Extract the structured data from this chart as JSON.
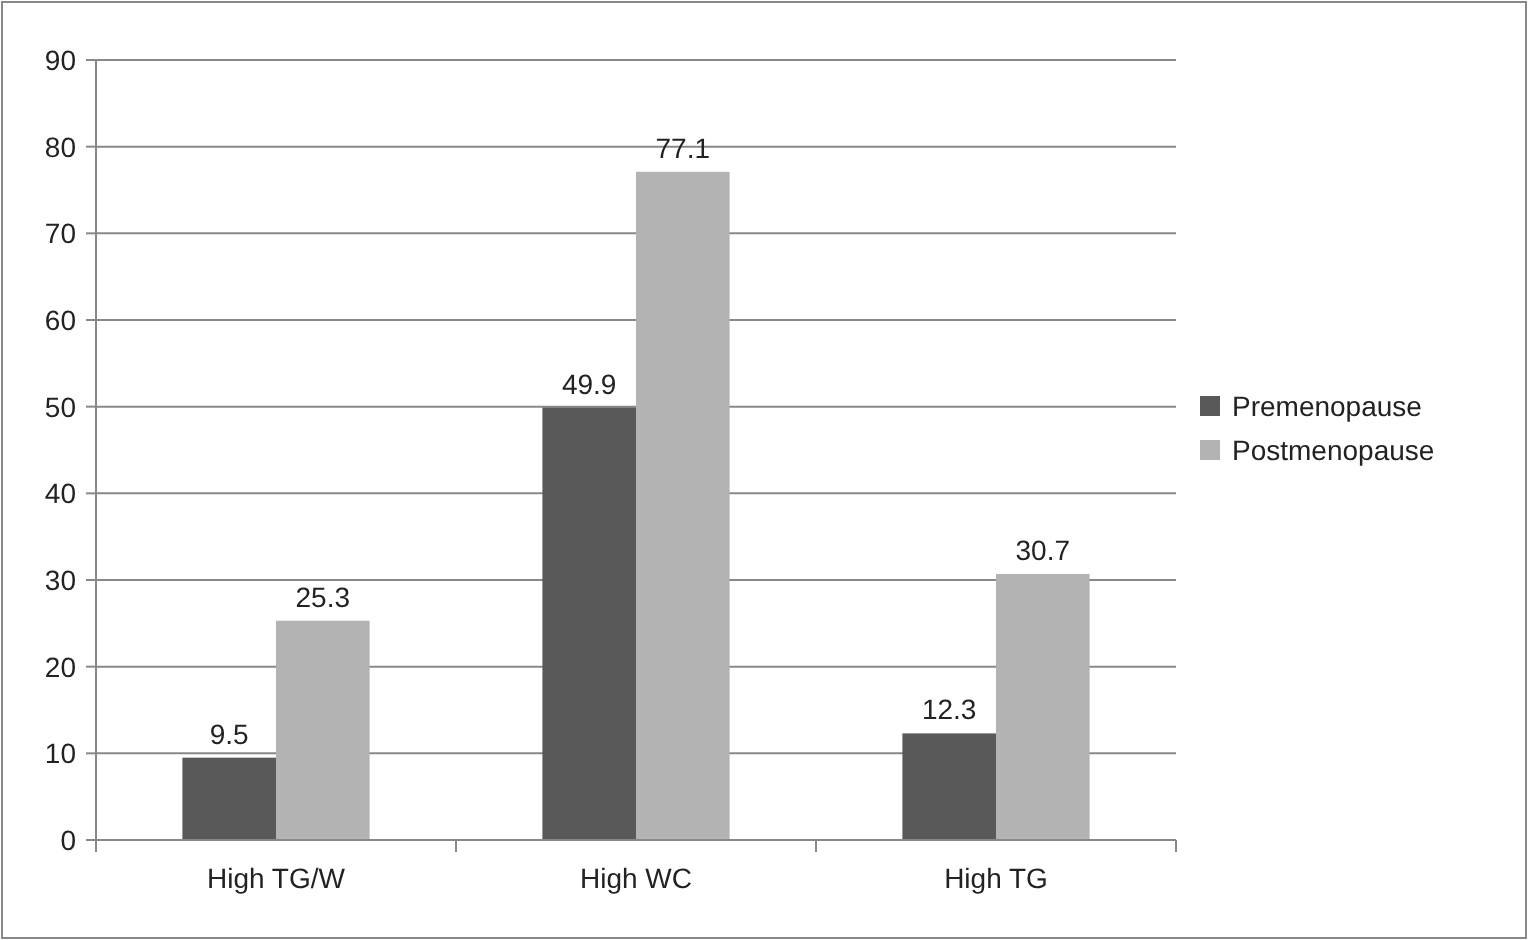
{
  "chart_data": {
    "type": "bar",
    "categories": [
      "High TG/W",
      "High WC",
      "High TG"
    ],
    "series": [
      {
        "name": "Premenopause",
        "color": "#595959",
        "values": [
          9.5,
          49.9,
          12.3
        ]
      },
      {
        "name": "Postmenopause",
        "color": "#b3b3b3",
        "values": [
          25.3,
          77.1,
          30.7
        ]
      }
    ],
    "ylim": [
      0,
      90
    ],
    "yticks": [
      0,
      10,
      20,
      30,
      40,
      50,
      60,
      70,
      80,
      90
    ],
    "grid": "y",
    "legend": "right",
    "data_labels": true
  }
}
